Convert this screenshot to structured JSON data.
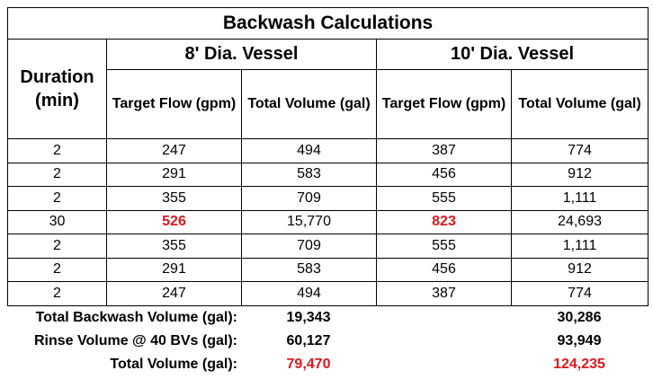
{
  "title": "Backwash Calculations",
  "duration_header": "Duration (min)",
  "groups": [
    "8' Dia. Vessel",
    "10' Dia. Vessel"
  ],
  "subheaders": [
    "Target Flow (gpm)",
    "Total Volume (gal)",
    "Target Flow (gpm)",
    "Total Volume (gal)"
  ],
  "rows": [
    [
      "2",
      "247",
      "494",
      "387",
      "774"
    ],
    [
      "2",
      "291",
      "583",
      "456",
      "912"
    ],
    [
      "2",
      "355",
      "709",
      "555",
      "1,111"
    ],
    [
      "30",
      "526",
      "15,770",
      "823",
      "24,693"
    ],
    [
      "2",
      "355",
      "709",
      "555",
      "1,111"
    ],
    [
      "2",
      "291",
      "583",
      "456",
      "912"
    ],
    [
      "2",
      "247",
      "494",
      "387",
      "774"
    ]
  ],
  "summary": [
    [
      "Total Backwash Volume (gal):",
      "19,343",
      "30,286"
    ],
    [
      "Rinse Volume @ 40 BVs (gal):",
      "60,127",
      "93,949"
    ],
    [
      "Total Volume (gal):",
      "79,470",
      "124,235"
    ]
  ]
}
